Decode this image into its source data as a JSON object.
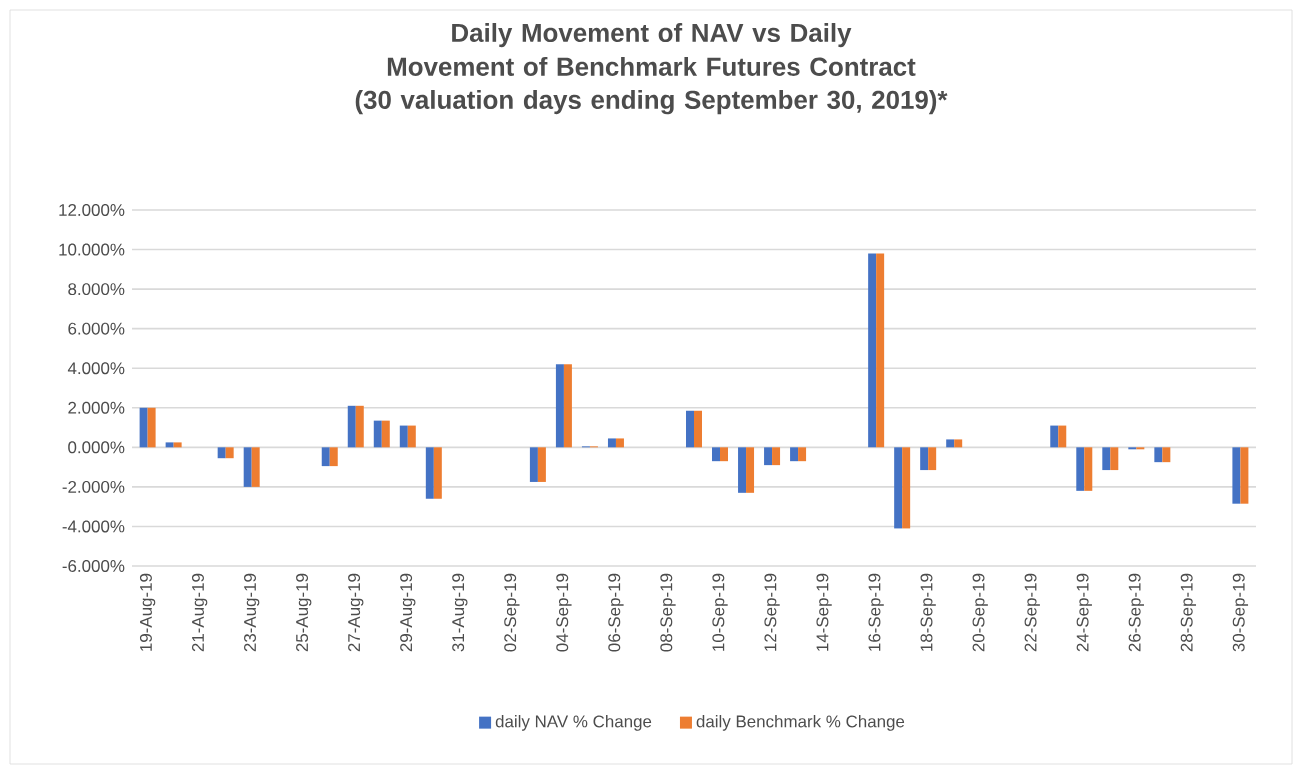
{
  "chart_data": {
    "type": "bar",
    "title": "Daily Movement of NAV vs Daily Movement of Benchmark Futures Contract",
    "subtitle": "(30 valuation days ending September 30, 2019)*",
    "categories": [
      "19-Aug-19",
      null,
      "21-Aug-19",
      null,
      "23-Aug-19",
      null,
      "25-Aug-19",
      null,
      "27-Aug-19",
      null,
      "29-Aug-19",
      null,
      "31-Aug-19",
      null,
      "02-Sep-19",
      null,
      "04-Sep-19",
      null,
      "06-Sep-19",
      null,
      "08-Sep-19",
      null,
      "10-Sep-19",
      null,
      "12-Sep-19",
      null,
      "14-Sep-19",
      null,
      "16-Sep-19",
      null,
      "18-Sep-19",
      null,
      "20-Sep-19",
      null,
      "22-Sep-19",
      null,
      "24-Sep-19",
      null,
      "26-Sep-19",
      null,
      "28-Sep-19",
      null,
      "30-Sep-19"
    ],
    "series": [
      {
        "name": "daily NAV % Change",
        "color": "#4472c4",
        "values": [
          2.0,
          0.25,
          0.0,
          -0.55,
          -2.0,
          null,
          null,
          -0.95,
          2.1,
          1.35,
          1.1,
          -2.6,
          null,
          null,
          null,
          -1.75,
          4.2,
          0.05,
          0.45,
          null,
          null,
          1.85,
          -0.7,
          -2.3,
          -0.9,
          -0.7,
          null,
          null,
          9.8,
          -4.1,
          -1.15,
          0.4,
          0.0,
          null,
          null,
          1.1,
          -2.2,
          -1.15,
          -0.1,
          -0.75,
          null,
          null,
          -2.85
        ]
      },
      {
        "name": "daily Benchmark % Change",
        "color": "#ed7d31",
        "values": [
          2.0,
          0.25,
          0.0,
          -0.55,
          -2.0,
          null,
          null,
          -0.95,
          2.1,
          1.35,
          1.1,
          -2.6,
          null,
          null,
          null,
          -1.75,
          4.2,
          0.05,
          0.45,
          null,
          null,
          1.85,
          -0.7,
          -2.3,
          -0.9,
          -0.7,
          null,
          null,
          9.8,
          -4.1,
          -1.15,
          0.4,
          0.0,
          null,
          null,
          1.1,
          -2.2,
          -1.15,
          -0.1,
          -0.75,
          null,
          null,
          -2.85
        ]
      }
    ],
    "ylim": [
      -6,
      12
    ],
    "yticks": [
      {
        "value": -6,
        "label": "-6.000%"
      },
      {
        "value": -4,
        "label": "-4.000%"
      },
      {
        "value": -2,
        "label": "-2.000%"
      },
      {
        "value": 0,
        "label": "0.000%"
      },
      {
        "value": 2,
        "label": "2.000%"
      },
      {
        "value": 4,
        "label": "4.000%"
      },
      {
        "value": 6,
        "label": "6.000%"
      },
      {
        "value": 8,
        "label": "8.000%"
      },
      {
        "value": 10,
        "label": "10.000%"
      },
      {
        "value": 12,
        "label": "12.000%"
      }
    ],
    "grid": "y",
    "legend": "bottom"
  }
}
